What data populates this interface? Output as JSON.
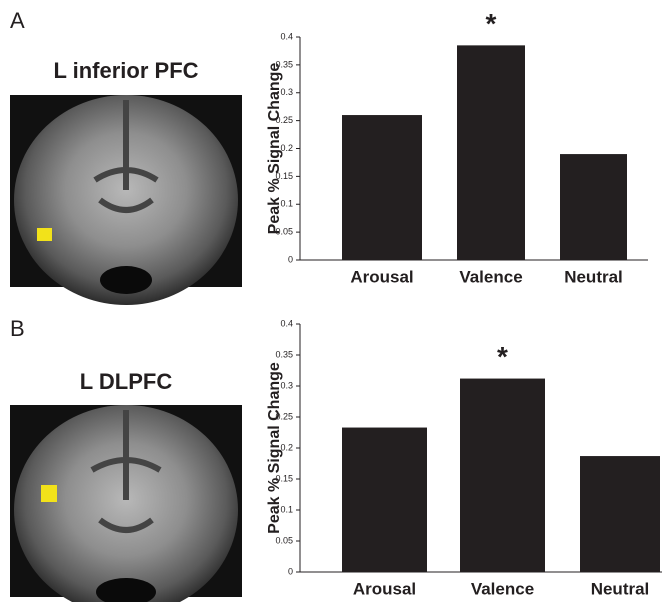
{
  "chart_data": [
    {
      "type": "bar",
      "panel_label": "A",
      "image_title": "L inferior PFC",
      "ylabel": "Peak % Signal Change",
      "categories": [
        "Arousal",
        "Valence",
        "Neutral"
      ],
      "values": [
        0.26,
        0.385,
        0.19
      ],
      "color": "#231f20",
      "ylim": [
        0,
        0.4
      ],
      "yticks": [
        0,
        0.05,
        0.1,
        0.15,
        0.2,
        0.25,
        0.3,
        0.35,
        0.4
      ],
      "annotations": [
        {
          "text": "*",
          "x": "Valence"
        }
      ]
    },
    {
      "type": "bar",
      "panel_label": "B",
      "image_title": "L DLPFC",
      "ylabel": "Peak % Signal Change",
      "categories": [
        "Arousal",
        "Valence",
        "Neutral"
      ],
      "values": [
        0.233,
        0.312,
        0.187
      ],
      "color": "#231f20",
      "ylim": [
        0,
        0.4
      ],
      "yticks": [
        0,
        0.05,
        0.1,
        0.15,
        0.2,
        0.25,
        0.3,
        0.35,
        0.4
      ],
      "annotations": [
        {
          "text": "*",
          "x": "Valence"
        }
      ]
    }
  ]
}
